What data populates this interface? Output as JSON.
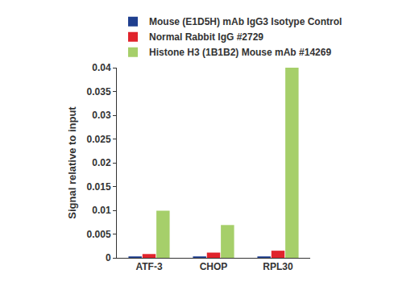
{
  "chart_data": {
    "type": "bar",
    "y_label": "Signal relative to input",
    "categories": [
      "ATF-3",
      "CHOP",
      "RPL30"
    ],
    "series": [
      {
        "name": "Mouse (E1D5H) mAb IgG3 Isotype Control",
        "color": "#1f3f8f",
        "values": [
          0.0003,
          0.0003,
          0.0003
        ]
      },
      {
        "name": "Normal Rabbit IgG #2729",
        "color": "#e0242c",
        "values": [
          0.0008,
          0.0011,
          0.0015
        ]
      },
      {
        "name": "Histone H3 (1B1B2) Mouse mAb #14269",
        "color": "#a6cf6a",
        "values": [
          0.0099,
          0.0069,
          0.04
        ]
      }
    ],
    "ylim": [
      0,
      0.04
    ],
    "yticks": [
      0,
      0.005,
      0.01,
      0.015,
      0.02,
      0.025,
      0.03,
      0.035,
      0.04
    ],
    "grid": false,
    "legend": "top"
  }
}
